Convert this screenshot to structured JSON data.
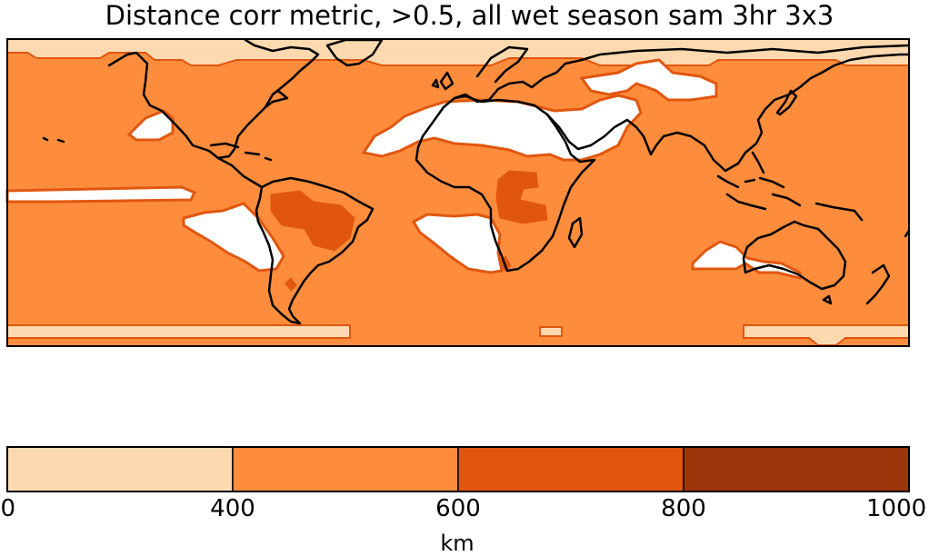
{
  "title": "Distance corr metric, >0.5, all wet season sam 3hr 3x3",
  "colors": {
    "background_field": "#fd8d3c",
    "bin_0_400": "#fdd9b0",
    "bin_400_600": "#fd8d3c",
    "bin_600_800": "#e1560f",
    "bin_800_1000": "#9c360a",
    "missing": "#ffffff",
    "coastline": "#000000"
  },
  "colorbar": {
    "unit": "km",
    "ticks": [
      "0",
      "400",
      "600",
      "800",
      "1000"
    ],
    "bins": [
      {
        "from": 0,
        "to": 400,
        "color": "#fdd9b0"
      },
      {
        "from": 400,
        "to": 600,
        "color": "#fd8d3c"
      },
      {
        "from": 600,
        "to": 800,
        "color": "#e1560f"
      },
      {
        "from": 800,
        "to": 1000,
        "color": "#9c360a"
      }
    ]
  }
}
